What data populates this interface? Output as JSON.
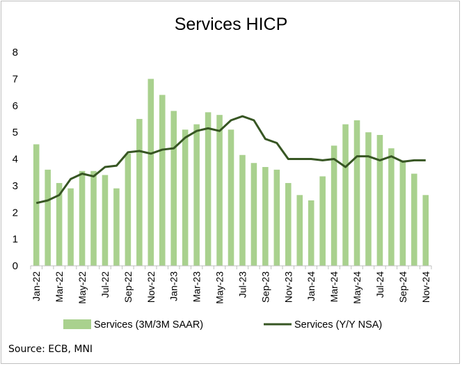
{
  "chart_data": {
    "type": "bar",
    "title": "Services HICP",
    "xlabel": "",
    "ylabel": "",
    "ylim": [
      0,
      8
    ],
    "yticks": [
      0,
      1,
      2,
      3,
      4,
      5,
      6,
      7,
      8
    ],
    "grid": false,
    "legend_position": "bottom",
    "x": [
      "Jan-22",
      "Feb-22",
      "Mar-22",
      "Apr-22",
      "May-22",
      "Jun-22",
      "Jul-22",
      "Aug-22",
      "Sep-22",
      "Oct-22",
      "Nov-22",
      "Dec-22",
      "Jan-23",
      "Feb-23",
      "Mar-23",
      "Apr-23",
      "May-23",
      "Jun-23",
      "Jul-23",
      "Aug-23",
      "Sep-23",
      "Oct-23",
      "Nov-23",
      "Dec-23",
      "Jan-24",
      "Feb-24",
      "Mar-24",
      "Apr-24",
      "May-24",
      "Jun-24",
      "Jul-24",
      "Aug-24",
      "Sep-24",
      "Oct-24",
      "Nov-24"
    ],
    "tick_labels": [
      "Jan-22",
      "Mar-22",
      "May-22",
      "Jul-22",
      "Sep-22",
      "Nov-22",
      "Jan-23",
      "Mar-23",
      "May-23",
      "Jul-23",
      "Sep-23",
      "Nov-23",
      "Jan-24",
      "Mar-24",
      "May-24",
      "Jul-24",
      "Sep-24",
      "Nov-24"
    ],
    "series": [
      {
        "name": "Services (3M/3M SAAR)",
        "type": "bar",
        "color": "#a9d18e",
        "values": [
          4.55,
          3.6,
          3.1,
          2.9,
          3.55,
          3.55,
          3.4,
          2.9,
          4.2,
          5.5,
          7.0,
          6.4,
          5.8,
          5.1,
          5.3,
          5.75,
          5.65,
          5.1,
          4.15,
          3.85,
          3.7,
          3.6,
          3.1,
          2.65,
          2.45,
          3.35,
          4.5,
          5.3,
          5.45,
          5.0,
          4.9,
          4.4,
          3.95,
          3.45,
          2.65
        ]
      },
      {
        "name": "Services (Y/Y NSA)",
        "type": "line",
        "color": "#375623",
        "values": [
          2.35,
          2.45,
          2.65,
          3.25,
          3.45,
          3.35,
          3.7,
          3.75,
          4.25,
          4.3,
          4.2,
          4.35,
          4.4,
          4.8,
          5.05,
          5.15,
          5.05,
          5.45,
          5.6,
          5.45,
          4.75,
          4.6,
          4.0,
          4.0,
          4.0,
          3.95,
          4.0,
          3.7,
          4.1,
          4.1,
          3.95,
          4.1,
          3.9,
          3.95,
          3.95
        ]
      }
    ]
  },
  "source": "Source: ECB, MNI"
}
